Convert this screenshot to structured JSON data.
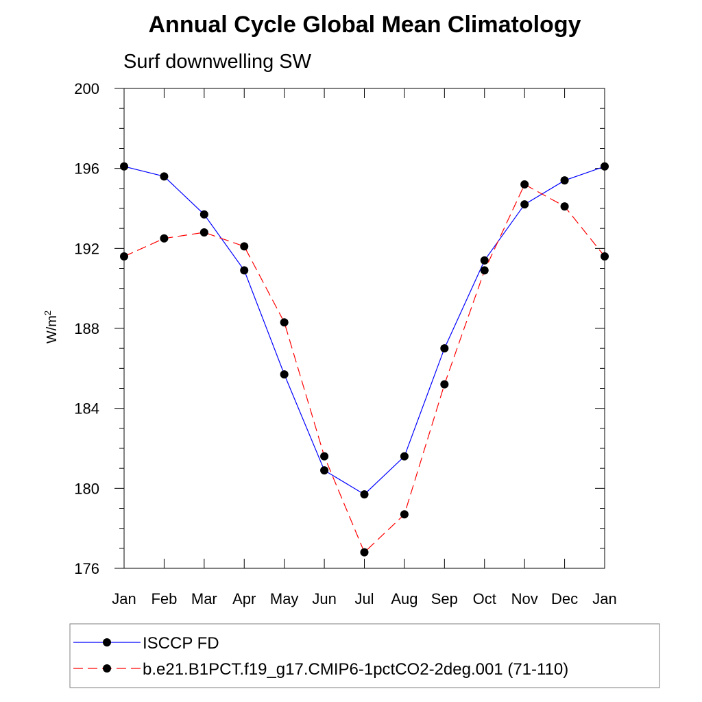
{
  "chart_data": {
    "type": "line",
    "title": "Annual Cycle Global Mean Climatology",
    "subtitle": "Surf downwelling SW",
    "ylabel": "W/m",
    "ylabel_superscript": "2",
    "xlabel": "",
    "categories": [
      "Jan",
      "Feb",
      "Mar",
      "Apr",
      "May",
      "Jun",
      "Jul",
      "Aug",
      "Sep",
      "Oct",
      "Nov",
      "Dec",
      "Jan"
    ],
    "ylim": [
      176,
      200
    ],
    "yticks": [
      176,
      180,
      184,
      188,
      192,
      196,
      200
    ],
    "grid": false,
    "legend_position": "bottom",
    "series": [
      {
        "name": "ISCCP FD",
        "color": "#0000ff",
        "dash": "solid",
        "marker": "filled-circle",
        "values": [
          196.1,
          195.6,
          193.7,
          190.9,
          185.7,
          180.9,
          179.7,
          181.6,
          187.0,
          191.4,
          194.2,
          195.4,
          196.1
        ]
      },
      {
        "name": "b.e21.B1PCT.f19_g17.CMIP6-1pctCO2-2deg.001 (71-110)",
        "color": "#ff0000",
        "dash": "dashed",
        "marker": "filled-circle",
        "values": [
          191.6,
          192.5,
          192.8,
          192.1,
          188.3,
          181.6,
          176.8,
          178.7,
          185.2,
          190.9,
          195.2,
          194.1,
          191.6
        ]
      }
    ]
  }
}
